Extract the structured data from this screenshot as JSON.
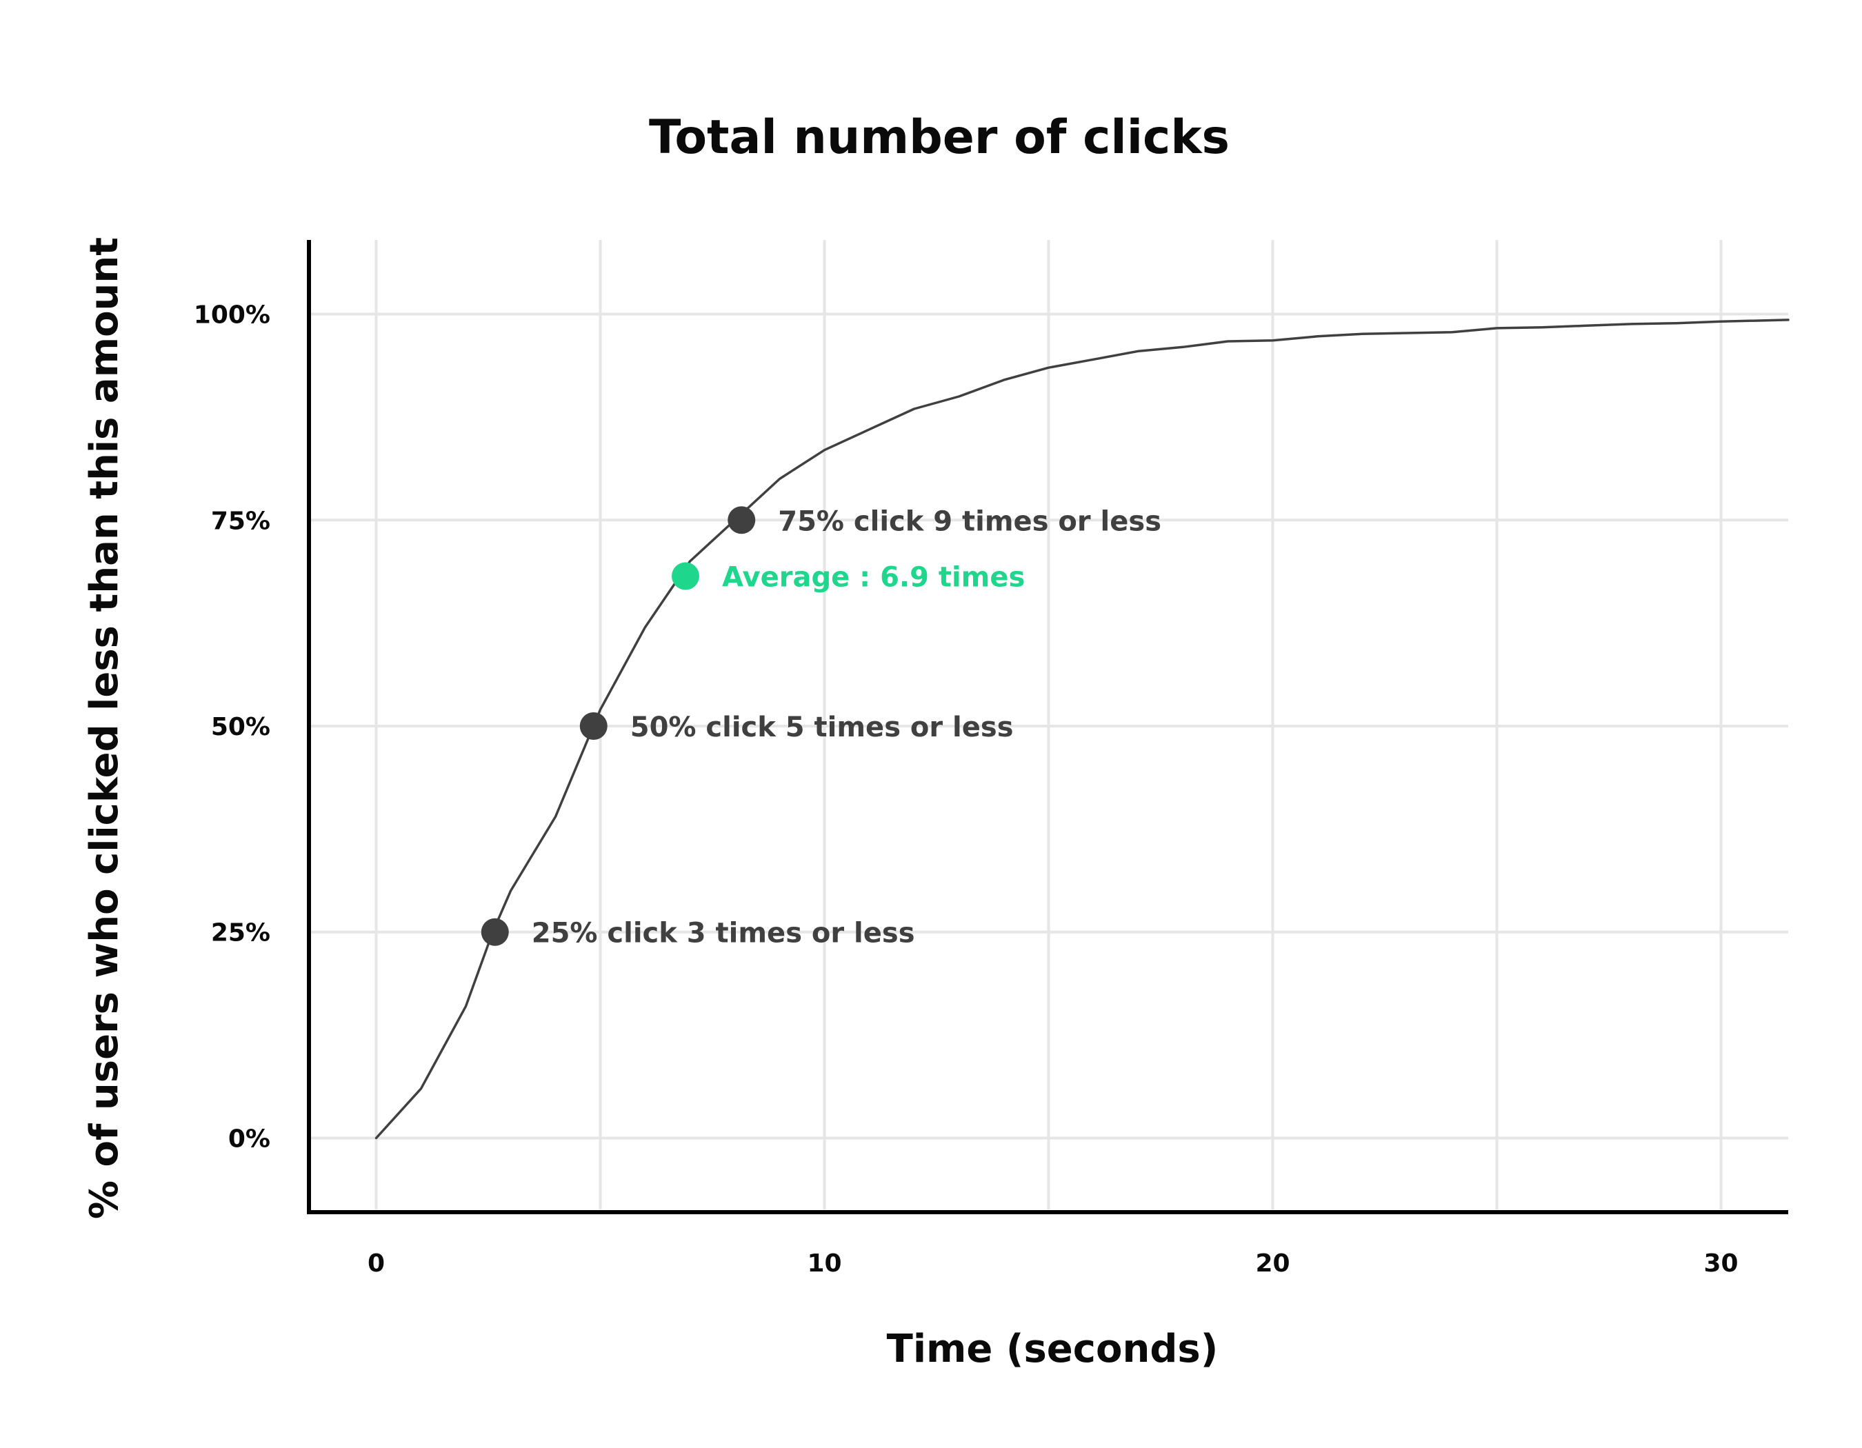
{
  "chart_data": {
    "type": "line",
    "title": "Total number of clicks",
    "xlabel": "Time (seconds)",
    "ylabel": "% of users who clicked less than this amount",
    "xlim": [
      -1.5,
      31.5
    ],
    "ylim": [
      -0.09,
      1.09
    ],
    "x_ticks": [
      0,
      10,
      20,
      30
    ],
    "x_tick_labels": [
      "0",
      "10",
      "20",
      "30"
    ],
    "x_gridlines": [
      0,
      5,
      10,
      15,
      20,
      25,
      30
    ],
    "y_ticks": [
      0,
      0.25,
      0.5,
      0.75,
      1.0
    ],
    "y_tick_labels": [
      "0%",
      "25%",
      "50%",
      "75%",
      "100%"
    ],
    "grid": true,
    "legend": "none",
    "series": [
      {
        "color": "#404040",
        "x": [
          0,
          1,
          2,
          2.6,
          3,
          4,
          5,
          6,
          7,
          8,
          9,
          10,
          11,
          12,
          13,
          14,
          15,
          16,
          17,
          18,
          19,
          20,
          21,
          22,
          23,
          24,
          25,
          26,
          27,
          28,
          29,
          30,
          31.5
        ],
        "y": [
          0.0,
          0.06,
          0.16,
          0.25,
          0.3,
          0.39,
          0.52,
          0.62,
          0.7,
          0.75,
          0.8,
          0.835,
          0.86,
          0.885,
          0.9,
          0.92,
          0.935,
          0.945,
          0.955,
          0.96,
          0.967,
          0.968,
          0.973,
          0.976,
          0.977,
          0.978,
          0.983,
          0.984,
          0.986,
          0.988,
          0.989,
          0.991,
          0.993
        ]
      }
    ],
    "annotations": [
      {
        "x": 2.65,
        "y": 0.25,
        "text": "25% click 3 times or less",
        "color": "#404040"
      },
      {
        "x": 4.85,
        "y": 0.5,
        "text": "50% click 5 times or less",
        "color": "#404040"
      },
      {
        "x": 8.15,
        "y": 0.75,
        "text": "75% click 9 times or less",
        "color": "#404040"
      },
      {
        "x": 6.9,
        "y": 0.682,
        "text": "Average : 6.9 times",
        "color": "#1ed68c"
      }
    ],
    "colors": {
      "line": "#404040",
      "marker": "#404040",
      "average": "#1ed68c",
      "grid": "#e6e6e6",
      "axis": "#000000"
    }
  }
}
